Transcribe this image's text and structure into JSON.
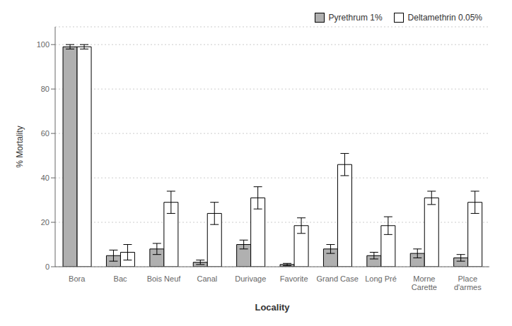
{
  "chart_data": {
    "type": "bar",
    "categories": [
      "Bora",
      "Bac",
      "Bois Neuf",
      "Canal",
      "Durivage",
      "Favorite",
      "Grand Case",
      "Long Pré",
      "Morne\nCarette",
      "Place\nd'armes"
    ],
    "series": [
      {
        "name": "Pyrethrum 1%",
        "color": "#b0b0b0",
        "values": [
          99,
          5,
          8,
          2,
          10,
          1,
          8,
          5,
          6,
          4
        ],
        "errors": [
          1,
          2.5,
          2.5,
          1,
          2,
          0.5,
          2,
          1.5,
          2,
          1.5
        ]
      },
      {
        "name": "Deltamethrin 0.05%",
        "color": "#ffffff",
        "values": [
          99,
          6.5,
          29,
          24,
          31,
          18.5,
          46,
          18.5,
          31,
          29
        ],
        "errors": [
          1,
          3.5,
          5,
          5,
          5,
          3.5,
          5,
          4,
          3,
          5
        ]
      }
    ],
    "xlabel": "Locality",
    "ylabel": "% Mortality",
    "ylim": [
      0,
      108
    ],
    "yticks": [
      0,
      20,
      40,
      60,
      80,
      100
    ],
    "grid": true,
    "legend": "upper right"
  }
}
